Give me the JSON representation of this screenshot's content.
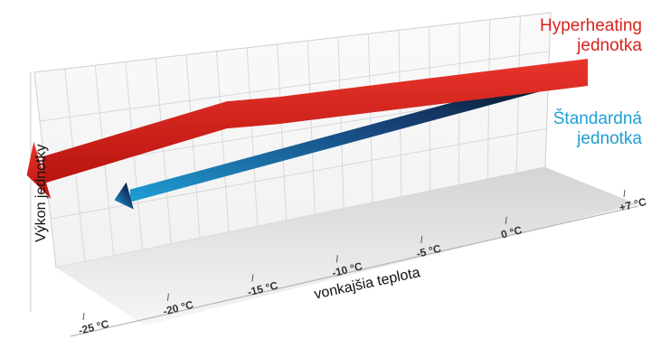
{
  "colors": {
    "hyperheating": "#d9221b",
    "standard": "#1e9fd6",
    "grid": "#d8d8d8",
    "wall": "#f1f1f1",
    "floor": "#e2e2e2"
  },
  "chart_data": {
    "type": "line",
    "title": "",
    "xlabel": "vonkajšia teplota",
    "ylabel": "Výkon jednotky",
    "categories": [
      "-25 °C",
      "-20 °C",
      "-15 °C",
      "-10 °C",
      "-5 °C",
      "0 °C",
      "+7 °C"
    ],
    "x": [
      -25,
      -20,
      -15,
      -10,
      -5,
      0,
      7
    ],
    "series": [
      {
        "name": "Hyperheating jednotka",
        "label_lines": [
          "Hyperheating",
          "jednotka"
        ],
        "x": [
          -25,
          -14,
          -11,
          7
        ],
        "values": [
          62,
          86,
          86,
          100
        ]
      },
      {
        "name": "Štandardná jednotka",
        "label_lines": [
          "Štandardná",
          "jednotka"
        ],
        "x": [
          -20,
          7
        ],
        "values": [
          38,
          100
        ]
      }
    ],
    "ylim": [
      0,
      100
    ],
    "grid": true,
    "legend": "right"
  }
}
